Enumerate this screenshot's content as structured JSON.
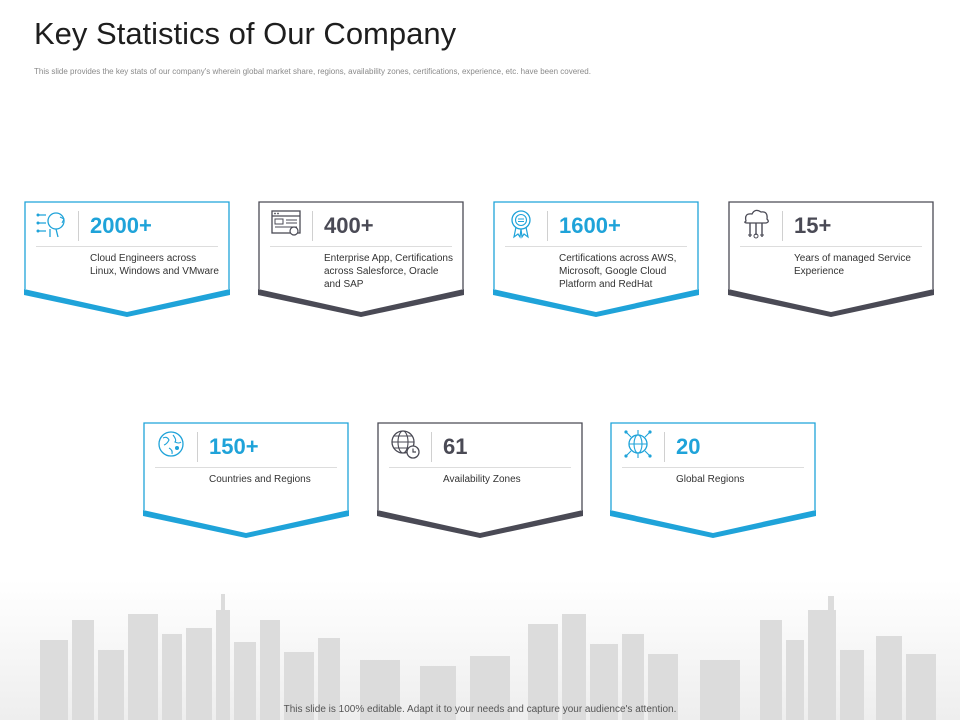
{
  "title": "Key Statistics of Our Company",
  "subtitle": "This slide provides the key stats of our company's wherein global market share, regions, availability zones, certifications, experience, etc. have been covered.",
  "footer": "This slide is 100% editable. Adapt it to your needs and capture your audience's attention.",
  "colors": {
    "blue": "#1fa3d9",
    "dark": "#4a4a55",
    "text": "#333333"
  },
  "stats": [
    {
      "value": "2000+",
      "description": "Cloud Engineers across Linux, Windows and VMware",
      "icon": "ai-head-circuit-icon",
      "accent": "blue"
    },
    {
      "value": "400+",
      "description": "Enterprise App, Certifications across Salesforce, Oracle and SAP",
      "icon": "browser-window-icon",
      "accent": "dark"
    },
    {
      "value": "1600+",
      "description": "Certifications across AWS, Microsoft, Google Cloud Platform and RedHat",
      "icon": "award-badge-icon",
      "accent": "blue"
    },
    {
      "value": "15+",
      "description": "Years of managed Service Experience",
      "icon": "cloud-tools-icon",
      "accent": "dark"
    },
    {
      "value": "150+",
      "description": "Countries and Regions",
      "icon": "globe-location-icon",
      "accent": "blue"
    },
    {
      "value": "61",
      "description": "Availability Zones",
      "icon": "globe-clock-icon",
      "accent": "dark"
    },
    {
      "value": "20",
      "description": "Global Regions",
      "icon": "globe-network-icon",
      "accent": "blue"
    }
  ]
}
